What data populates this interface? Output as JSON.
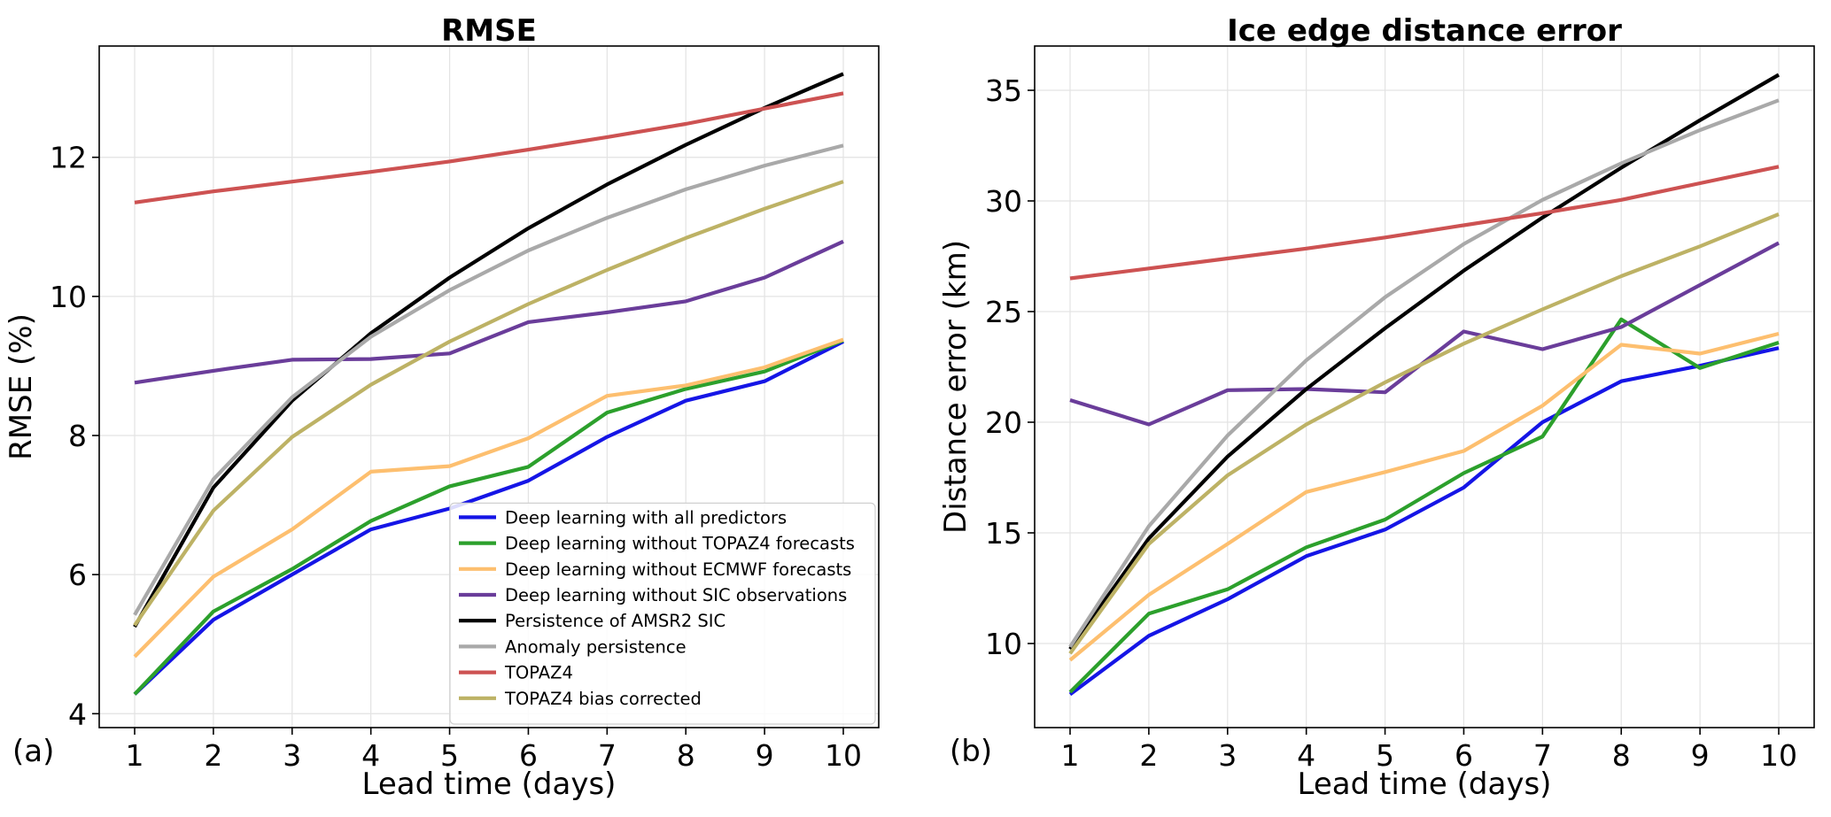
{
  "chart_data": [
    {
      "type": "line",
      "panel_label": "(a)",
      "title": "RMSE",
      "xlabel": "Lead time (days)",
      "ylabel": "RMSE (%)",
      "x": [
        1,
        2,
        3,
        4,
        5,
        6,
        7,
        8,
        9,
        10
      ],
      "xlim": [
        0.55,
        10.45
      ],
      "ylim": [
        3.8,
        13.6
      ],
      "yticks": [
        4,
        6,
        8,
        10,
        12
      ],
      "grid": true,
      "legend": "lower-right",
      "series": [
        {
          "name": "Deep learning with all predictors",
          "color": "#1515e6",
          "values": [
            4.28,
            5.35,
            6.0,
            6.65,
            6.95,
            7.35,
            7.98,
            8.5,
            8.78,
            9.35
          ]
        },
        {
          "name": "Deep learning without TOPAZ4 forecasts",
          "color": "#2ca02c",
          "values": [
            4.28,
            5.47,
            6.08,
            6.77,
            7.27,
            7.55,
            8.33,
            8.67,
            8.92,
            9.37
          ]
        },
        {
          "name": "Deep learning without ECMWF forecasts",
          "color": "#fdbf6f",
          "values": [
            4.82,
            5.97,
            6.65,
            7.48,
            7.56,
            7.96,
            8.57,
            8.72,
            8.98,
            9.38
          ]
        },
        {
          "name": "Deep learning without SIC observations",
          "color": "#6a3d9a",
          "values": [
            8.76,
            8.93,
            9.09,
            9.1,
            9.18,
            9.63,
            9.77,
            9.93,
            10.27,
            10.79
          ]
        },
        {
          "name": "Persistence of AMSR2 SIC",
          "color": "#000000",
          "values": [
            5.25,
            7.25,
            8.5,
            9.47,
            10.27,
            10.98,
            11.61,
            12.18,
            12.71,
            13.2
          ]
        },
        {
          "name": "Anomaly persistence",
          "color": "#a9a9a9",
          "values": [
            5.42,
            7.37,
            8.55,
            9.42,
            10.09,
            10.66,
            11.13,
            11.54,
            11.88,
            12.17
          ]
        },
        {
          "name": "TOPAZ4",
          "color": "#cd5252",
          "values": [
            11.35,
            11.51,
            11.65,
            11.79,
            11.94,
            12.11,
            12.29,
            12.48,
            12.7,
            12.92
          ]
        },
        {
          "name": "TOPAZ4 bias corrected",
          "color": "#bdb265",
          "values": [
            5.27,
            6.92,
            7.98,
            8.73,
            9.35,
            9.89,
            10.38,
            10.84,
            11.26,
            11.65
          ]
        }
      ]
    },
    {
      "type": "line",
      "panel_label": "(b)",
      "title": "Ice edge distance error",
      "xlabel": "Lead time (days)",
      "ylabel": "Distance error (km)",
      "x": [
        1,
        2,
        3,
        4,
        5,
        6,
        7,
        8,
        9,
        10
      ],
      "xlim": [
        0.55,
        10.45
      ],
      "ylim": [
        6.2,
        37.0
      ],
      "yticks": [
        10,
        15,
        20,
        25,
        30,
        35
      ],
      "grid": true,
      "legend": "none",
      "series": [
        {
          "name": "Deep learning with all predictors",
          "color": "#1515e6",
          "values": [
            7.7,
            10.35,
            12.0,
            13.95,
            15.15,
            17.05,
            20.0,
            21.85,
            22.55,
            23.35
          ]
        },
        {
          "name": "Deep learning without TOPAZ4 forecasts",
          "color": "#2ca02c",
          "values": [
            7.8,
            11.35,
            12.45,
            14.35,
            15.6,
            17.7,
            19.35,
            24.65,
            22.45,
            23.6
          ]
        },
        {
          "name": "Deep learning without ECMWF forecasts",
          "color": "#fdbf6f",
          "values": [
            9.25,
            12.2,
            14.5,
            16.85,
            17.75,
            18.7,
            20.75,
            23.5,
            23.1,
            24.0
          ]
        },
        {
          "name": "Deep learning without SIC observations",
          "color": "#6a3d9a",
          "values": [
            21.0,
            19.9,
            21.45,
            21.5,
            21.35,
            24.1,
            23.3,
            24.3,
            26.2,
            28.1
          ]
        },
        {
          "name": "Persistence of AMSR2 SIC",
          "color": "#000000",
          "values": [
            9.75,
            14.75,
            18.45,
            21.5,
            24.25,
            26.85,
            29.25,
            31.5,
            33.65,
            35.7
          ]
        },
        {
          "name": "Anomaly persistence",
          "color": "#a9a9a9",
          "values": [
            9.85,
            15.3,
            19.4,
            22.8,
            25.65,
            28.05,
            30.05,
            31.7,
            33.2,
            34.55
          ]
        },
        {
          "name": "TOPAZ4",
          "color": "#cd5252",
          "values": [
            26.5,
            26.95,
            27.4,
            27.85,
            28.35,
            28.9,
            29.45,
            30.05,
            30.8,
            31.55
          ]
        },
        {
          "name": "TOPAZ4 bias corrected",
          "color": "#bdb265",
          "values": [
            9.55,
            14.5,
            17.6,
            19.9,
            21.8,
            23.55,
            25.1,
            26.6,
            27.95,
            29.4
          ]
        }
      ]
    }
  ]
}
